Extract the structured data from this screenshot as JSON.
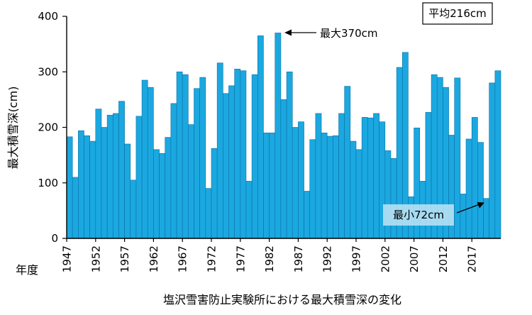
{
  "chart_data": {
    "type": "bar",
    "title": "塩沢雪害防止実験所における最大積雪深の変化",
    "xlabel": "年度",
    "ylabel": "最大積雪深(cm)",
    "ylim": [
      0,
      400
    ],
    "yticks": [
      0,
      100,
      200,
      300,
      400
    ],
    "xtick_labels": [
      "1947",
      "1952",
      "1957",
      "1962",
      "1967",
      "1972",
      "1977",
      "1982",
      "1987",
      "1992",
      "1997",
      "2002",
      "2007",
      "2012",
      "2017"
    ],
    "categories": [
      "1947",
      "1948",
      "1949",
      "1950",
      "1951",
      "1952",
      "1953",
      "1954",
      "1955",
      "1956",
      "1957",
      "1958",
      "1959",
      "1960",
      "1961",
      "1962",
      "1963",
      "1964",
      "1965",
      "1966",
      "1967",
      "1968",
      "1969",
      "1970",
      "1971",
      "1972",
      "1973",
      "1974",
      "1975",
      "1976",
      "1977",
      "1978",
      "1979",
      "1980",
      "1981",
      "1982",
      "1983",
      "1984",
      "1985",
      "1986",
      "1987",
      "1988",
      "1989",
      "1990",
      "1991",
      "1992",
      "1993",
      "1994",
      "1995",
      "1996",
      "1997",
      "1998",
      "1999",
      "2000",
      "2001",
      "2002",
      "2003",
      "2004",
      "2005",
      "2006",
      "2007",
      "2008",
      "2009",
      "2010",
      "2011",
      "2012",
      "2013",
      "2014",
      "2015",
      "2016",
      "2017",
      "2018",
      "2019",
      "2020",
      "2021"
    ],
    "values": [
      183,
      110,
      194,
      185,
      175,
      233,
      200,
      222,
      225,
      247,
      170,
      105,
      220,
      285,
      272,
      160,
      153,
      182,
      243,
      300,
      295,
      205,
      270,
      290,
      90,
      162,
      316,
      261,
      275,
      305,
      302,
      103,
      295,
      365,
      190,
      190,
      370,
      250,
      300,
      200,
      210,
      85,
      178,
      225,
      190,
      184,
      185,
      225,
      274,
      175,
      160,
      218,
      217,
      225,
      210,
      158,
      144,
      308,
      335,
      75,
      199,
      103,
      227,
      295,
      290,
      272,
      186,
      289,
      80,
      179,
      218,
      173,
      72,
      280,
      302
    ],
    "color": "#1ba8e0",
    "grid": false,
    "legend": "none",
    "annotations": {
      "average": "平均216cm",
      "max": "最大370cm",
      "min": "最小72cm"
    }
  }
}
